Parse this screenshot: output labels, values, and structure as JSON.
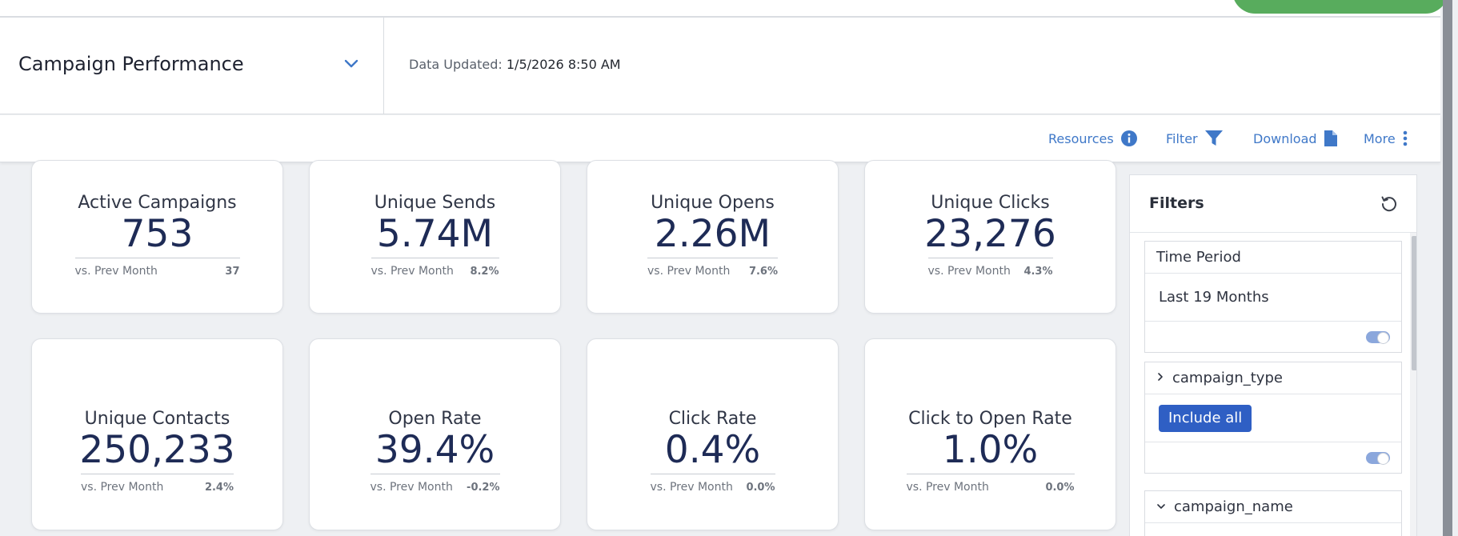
{
  "header": {
    "dashboard_title": "Campaign Performance",
    "updated_label": "Data Updated:",
    "updated_value": "1/5/2026 8:50 AM"
  },
  "toolbar": {
    "resources_label": "Resources",
    "filter_label": "Filter",
    "download_label": "Download",
    "more_label": "More"
  },
  "colors": {
    "accent": "#3f78c8",
    "value_text": "#1e2b56",
    "button": "#2f5fc4",
    "top_pill": "#58ac5d"
  },
  "metrics": [
    {
      "label": "Active Campaigns",
      "value": "753",
      "compare_label": "vs. Prev Month",
      "compare_value": "37"
    },
    {
      "label": "Unique Sends",
      "value": "5.74M",
      "compare_label": "vs. Prev Month",
      "compare_value": "8.2%"
    },
    {
      "label": "Unique Opens",
      "value": "2.26M",
      "compare_label": "vs. Prev Month",
      "compare_value": "7.6%"
    },
    {
      "label": "Unique Clicks",
      "value": "23,276",
      "compare_label": "vs. Prev Month",
      "compare_value": "4.3%"
    },
    {
      "label": "Unique Contacts",
      "value": "250,233",
      "compare_label": "vs. Prev Month",
      "compare_value": "2.4%"
    },
    {
      "label": "Open Rate",
      "value": "39.4%",
      "compare_label": "vs. Prev Month",
      "compare_value": "-0.2%"
    },
    {
      "label": "Click Rate",
      "value": "0.4%",
      "compare_label": "vs. Prev Month",
      "compare_value": "0.0%"
    },
    {
      "label": "Click to Open Rate",
      "value": "1.0%",
      "compare_label": "vs. Prev Month",
      "compare_value": "0.0%"
    }
  ],
  "filters": {
    "title": "Filters",
    "time_period": {
      "label": "Time Period",
      "value": "Last 19 Months"
    },
    "campaign_type": {
      "label": "campaign_type",
      "button_label": "Include all"
    },
    "campaign_name": {
      "label": "campaign_name"
    }
  },
  "icons": {
    "dashboard_select": "chevron-down-icon",
    "resources": "info-circle-icon",
    "filter": "funnel-icon",
    "download": "document-icon",
    "more": "vertical-dots-icon",
    "reset": "reset-icon",
    "collapsed": "chevron-right-icon",
    "expanded": "chevron-down-icon"
  }
}
